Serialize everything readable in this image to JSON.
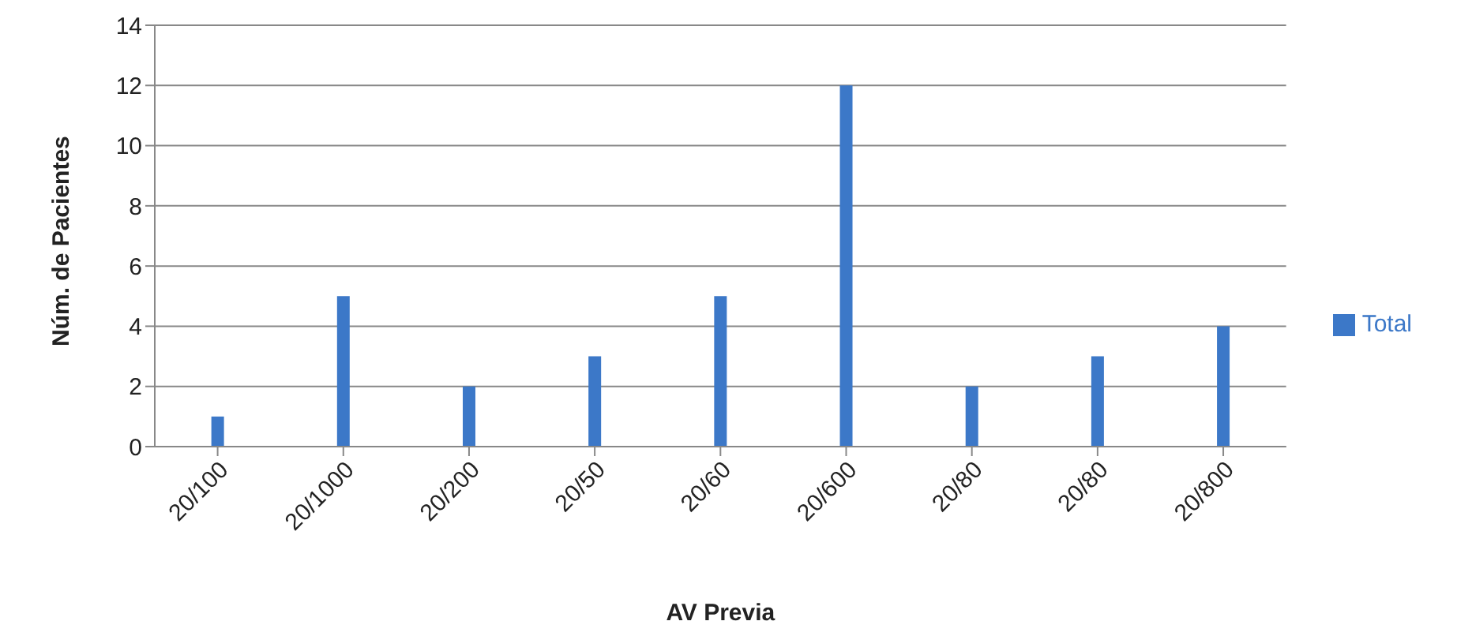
{
  "chart_data": {
    "type": "bar",
    "xlabel": "AV Previa",
    "ylabel": "Núm. de Pacientes",
    "categories": [
      "20/100",
      "20/1000",
      "20/200",
      "20/50",
      "20/60",
      "20/600",
      "20/80",
      "20/80",
      "20/800"
    ],
    "series": [
      {
        "name": "Total",
        "color": "#3c78c8",
        "values": [
          1,
          5,
          2,
          3,
          5,
          12,
          2,
          3,
          4
        ]
      }
    ],
    "ylim": [
      0,
      14
    ],
    "yticks": [
      0,
      2,
      4,
      6,
      8,
      10,
      12,
      14
    ],
    "grid": "y",
    "legend": "right"
  }
}
